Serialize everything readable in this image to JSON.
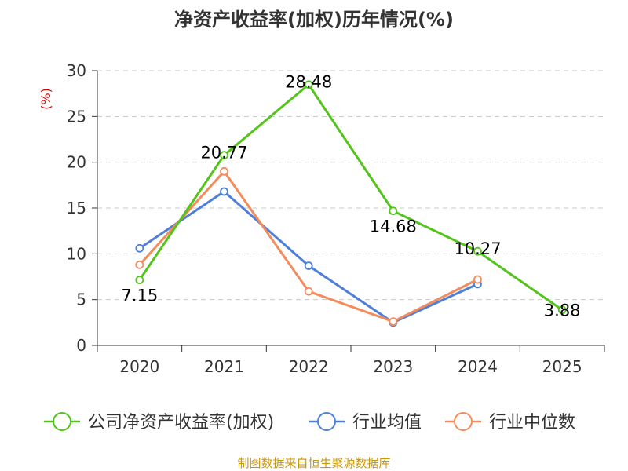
{
  "chart_data": {
    "type": "line",
    "title": "净资产收益率(加权)历年情况(%)",
    "ylabel": "(%)",
    "categories": [
      "2020",
      "2021",
      "2022",
      "2023",
      "2024",
      "2025"
    ],
    "ylim": [
      0,
      30
    ],
    "yticks": [
      0,
      5,
      10,
      15,
      20,
      25,
      30
    ],
    "grid": true,
    "legend_position": "bottom",
    "series": [
      {
        "name": "公司净资产收益率(加权)",
        "color": "#52c41a",
        "values": [
          7.15,
          20.77,
          28.48,
          14.68,
          10.27,
          3.88
        ],
        "labels": [
          "7.15",
          "20.77",
          "28.48",
          "14.68",
          "10.27",
          "3.88"
        ]
      },
      {
        "name": "行业均值",
        "color": "#4e7fd9",
        "values": [
          10.6,
          16.8,
          8.7,
          2.5,
          6.7,
          null
        ]
      },
      {
        "name": "行业中位数",
        "color": "#f38b5c",
        "values": [
          8.8,
          19.0,
          5.9,
          2.6,
          7.2,
          null
        ]
      }
    ]
  },
  "source_text": "制图数据来自恒生聚源数据库"
}
